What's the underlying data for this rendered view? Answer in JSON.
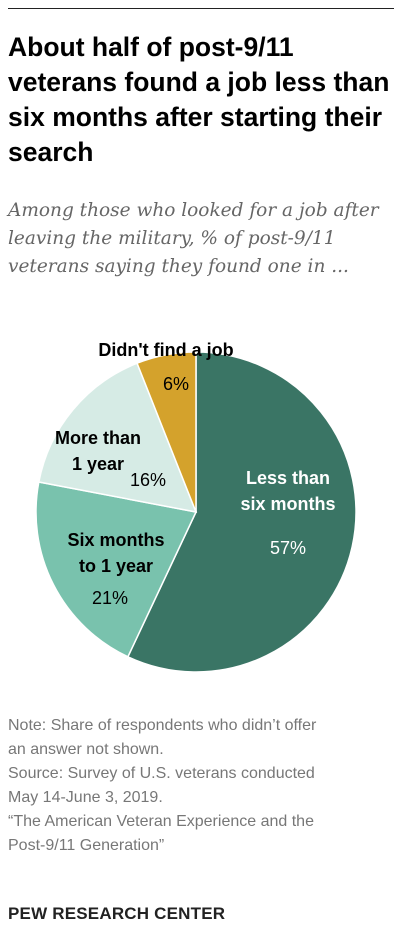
{
  "chart_data": {
    "type": "pie",
    "title": "About half of post-9/11 veterans found a job less than six months after starting their search",
    "subtitle": "Among those who looked for a job after leaving the military, % of post-9/11 veterans saying they found one in ...",
    "slices": [
      {
        "label": "Less than six months",
        "label_lines": [
          "Less than",
          "six months"
        ],
        "value": 57,
        "value_label": "57%",
        "color": "#3a7565"
      },
      {
        "label": "Six months to 1 year",
        "label_lines": [
          "Six months",
          "to 1 year"
        ],
        "value": 21,
        "value_label": "21%",
        "color": "#79c2ad"
      },
      {
        "label": "More than 1 year",
        "label_lines": [
          "More than",
          "1 year"
        ],
        "value": 16,
        "value_label": "16%",
        "color": "#d6ebe5"
      },
      {
        "label": "Didn't find a job",
        "label_lines": [
          "Didn't find a job"
        ],
        "value": 6,
        "value_label": "6%",
        "color": "#d4a22c"
      }
    ]
  },
  "notes": [
    "Note: Share of respondents who didn’t offer",
    "an answer not shown.",
    "Source: Survey of U.S. veterans conducted",
    "May 14-June 3, 2019.",
    "“The American Veteran Experience and the",
    "Post-9/11 Generation”"
  ],
  "brand": "PEW RESEARCH CENTER"
}
